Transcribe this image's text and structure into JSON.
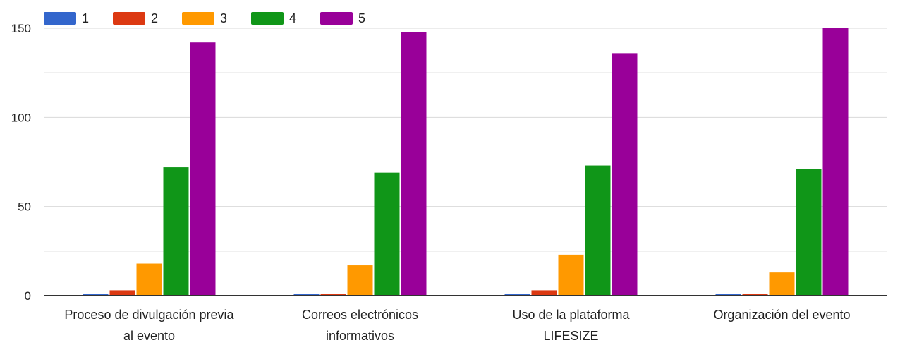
{
  "chart_data": {
    "type": "bar",
    "categories": [
      [
        "Proceso de divulgación previa",
        "al evento"
      ],
      [
        "Correos electrónicos",
        "informativos"
      ],
      [
        "Uso de la plataforma",
        "LIFESIZE"
      ],
      [
        "Organización del evento"
      ]
    ],
    "series": [
      {
        "name": "1",
        "color": "#3366cc",
        "values": [
          1,
          1,
          1,
          1
        ]
      },
      {
        "name": "2",
        "color": "#dc3912",
        "values": [
          3,
          1,
          3,
          1
        ]
      },
      {
        "name": "3",
        "color": "#ff9900",
        "values": [
          18,
          17,
          23,
          13
        ]
      },
      {
        "name": "4",
        "color": "#109618",
        "values": [
          72,
          69,
          73,
          71
        ]
      },
      {
        "name": "5",
        "color": "#990099",
        "values": [
          142,
          148,
          136,
          150
        ]
      }
    ],
    "ylim": [
      0,
      150
    ],
    "yticks": [
      0,
      50,
      100,
      150
    ],
    "grid": true,
    "legend_position": "top-left"
  }
}
